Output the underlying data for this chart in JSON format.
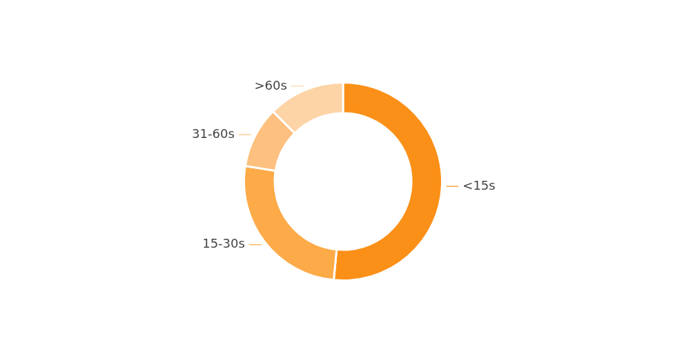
{
  "chart_data": {
    "type": "donut",
    "categories": [
      "<15s",
      "15-30s",
      "31-60s",
      ">60s"
    ],
    "values": [
      51.5,
      26,
      10,
      12.5
    ],
    "colors": [
      "#fb9018",
      "#fdaa48",
      "#fdc07e",
      "#fdd4a6"
    ]
  }
}
